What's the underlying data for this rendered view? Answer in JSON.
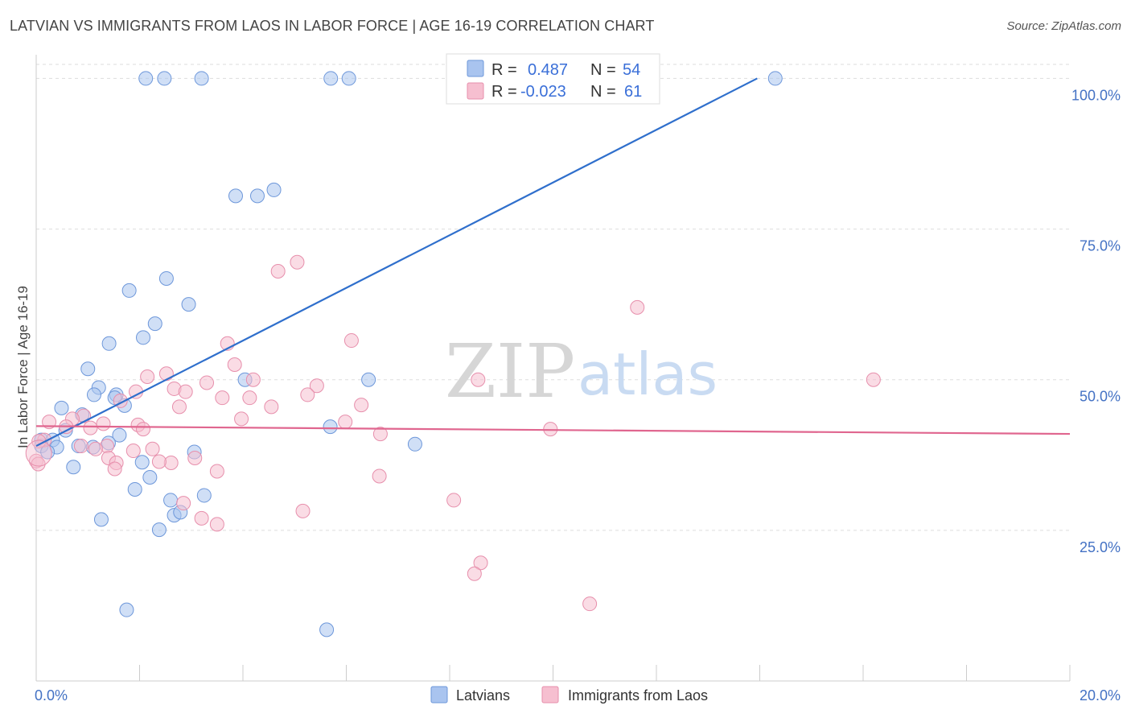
{
  "title": "LATVIAN VS IMMIGRANTS FROM LAOS IN LABOR FORCE | AGE 16-19 CORRELATION CHART",
  "source": "Source: ZipAtlas.com",
  "watermark": {
    "zip": "ZIP",
    "atlas": "atlas"
  },
  "colors": {
    "latvians_fill": "#a9c4ef",
    "latvians_stroke": "#6d97da",
    "latvians_line": "#2f6fcc",
    "laos_fill": "#f6bfd0",
    "laos_stroke": "#e78fac",
    "laos_line": "#e0668f",
    "grid": "#dddddd",
    "axis_text": "#4472c4"
  },
  "legend": {
    "r_label": "R =",
    "n_label": "N =",
    "rows": [
      {
        "r": "0.487",
        "n": "54"
      },
      {
        "r": "-0.023",
        "n": "61"
      }
    ]
  },
  "bottom_legend": [
    "Latvians",
    "Immigrants from Laos"
  ],
  "chart_data": {
    "type": "scatter",
    "ylabel": "In Labor Force | Age 16-19",
    "xlim": [
      0,
      20
    ],
    "ylim": [
      0,
      105
    ],
    "x_tick_labels": [
      "0.0%",
      "20.0%"
    ],
    "y_ticks": [
      25,
      50,
      75,
      100
    ],
    "y_tick_labels": [
      "25.0%",
      "50.0%",
      "75.0%",
      "100.0%"
    ],
    "grid": true,
    "series": [
      {
        "name": "Latvians",
        "trend": {
          "x0": 0.0,
          "y0": 39.0,
          "x1": 13.95,
          "y1": 100.0
        },
        "points": [
          [
            2.12,
            100
          ],
          [
            2.48,
            100
          ],
          [
            3.2,
            100
          ],
          [
            5.7,
            100
          ],
          [
            6.05,
            100
          ],
          [
            9.0,
            100
          ],
          [
            14.3,
            100
          ],
          [
            3.86,
            80.5
          ],
          [
            4.28,
            80.5
          ],
          [
            4.6,
            81.5
          ],
          [
            2.52,
            66.8
          ],
          [
            1.8,
            64.8
          ],
          [
            2.95,
            62.5
          ],
          [
            2.3,
            59.3
          ],
          [
            2.07,
            57.0
          ],
          [
            1.41,
            56.0
          ],
          [
            1.0,
            51.8
          ],
          [
            4.04,
            50.0
          ],
          [
            6.43,
            50.0
          ],
          [
            1.21,
            48.7
          ],
          [
            1.12,
            47.5
          ],
          [
            1.55,
            47.5
          ],
          [
            1.52,
            47.0
          ],
          [
            1.71,
            45.7
          ],
          [
            0.49,
            45.3
          ],
          [
            0.89,
            44.2
          ],
          [
            0.57,
            41.6
          ],
          [
            1.61,
            40.8
          ],
          [
            0.1,
            40.0
          ],
          [
            0.32,
            40.0
          ],
          [
            1.4,
            39.5
          ],
          [
            0.1,
            39.0
          ],
          [
            0.4,
            38.8
          ],
          [
            0.82,
            39.0
          ],
          [
            1.1,
            38.8
          ],
          [
            0.22,
            38.0
          ],
          [
            2.05,
            36.3
          ],
          [
            3.06,
            38.0
          ],
          [
            0.72,
            35.5
          ],
          [
            2.2,
            33.8
          ],
          [
            1.91,
            31.8
          ],
          [
            2.6,
            30.0
          ],
          [
            3.25,
            30.8
          ],
          [
            2.67,
            27.5
          ],
          [
            2.79,
            28.0
          ],
          [
            1.26,
            26.8
          ],
          [
            2.38,
            25.1
          ],
          [
            1.75,
            11.8
          ],
          [
            5.69,
            42.2
          ],
          [
            7.33,
            39.3
          ],
          [
            5.62,
            8.5
          ]
        ]
      },
      {
        "name": "Immigrants from Laos",
        "trend": {
          "x0": 0.0,
          "y0": 42.3,
          "x1": 20.0,
          "y1": 41.0
        },
        "points": [
          [
            4.68,
            68.0
          ],
          [
            5.05,
            69.5
          ],
          [
            11.63,
            62.0
          ],
          [
            6.1,
            56.5
          ],
          [
            3.7,
            56.0
          ],
          [
            3.84,
            52.5
          ],
          [
            2.52,
            51.0
          ],
          [
            2.15,
            50.5
          ],
          [
            4.2,
            50.0
          ],
          [
            8.55,
            50.0
          ],
          [
            16.2,
            50.0
          ],
          [
            3.3,
            49.5
          ],
          [
            5.43,
            49.0
          ],
          [
            2.67,
            48.5
          ],
          [
            2.89,
            48.0
          ],
          [
            1.93,
            48.0
          ],
          [
            5.25,
            47.5
          ],
          [
            3.6,
            47.0
          ],
          [
            4.13,
            47.0
          ],
          [
            1.63,
            46.5
          ],
          [
            4.55,
            45.5
          ],
          [
            2.77,
            45.5
          ],
          [
            6.29,
            45.8
          ],
          [
            0.92,
            44.0
          ],
          [
            0.7,
            43.5
          ],
          [
            3.97,
            43.5
          ],
          [
            5.98,
            43.0
          ],
          [
            0.25,
            43.0
          ],
          [
            1.3,
            42.7
          ],
          [
            1.97,
            42.5
          ],
          [
            9.95,
            41.8
          ],
          [
            2.07,
            41.8
          ],
          [
            0.58,
            42.2
          ],
          [
            1.05,
            42.0
          ],
          [
            6.66,
            41.0
          ],
          [
            0.16,
            40.0
          ],
          [
            0.05,
            39.8
          ],
          [
            1.37,
            39.0
          ],
          [
            0.87,
            39.0
          ],
          [
            1.15,
            38.5
          ],
          [
            2.25,
            38.5
          ],
          [
            1.88,
            38.2
          ],
          [
            1.4,
            37.0
          ],
          [
            3.07,
            37.0
          ],
          [
            2.61,
            36.2
          ],
          [
            2.38,
            36.4
          ],
          [
            1.55,
            36.2
          ],
          [
            0.0,
            36.5
          ],
          [
            0.04,
            36.0
          ],
          [
            1.52,
            35.2
          ],
          [
            3.5,
            34.8
          ],
          [
            6.64,
            34.0
          ],
          [
            8.08,
            30.0
          ],
          [
            2.85,
            29.5
          ],
          [
            5.16,
            28.2
          ],
          [
            3.2,
            27.0
          ],
          [
            3.5,
            26.0
          ],
          [
            8.6,
            19.6
          ],
          [
            8.48,
            17.8
          ],
          [
            10.71,
            12.8
          ]
        ]
      }
    ]
  }
}
